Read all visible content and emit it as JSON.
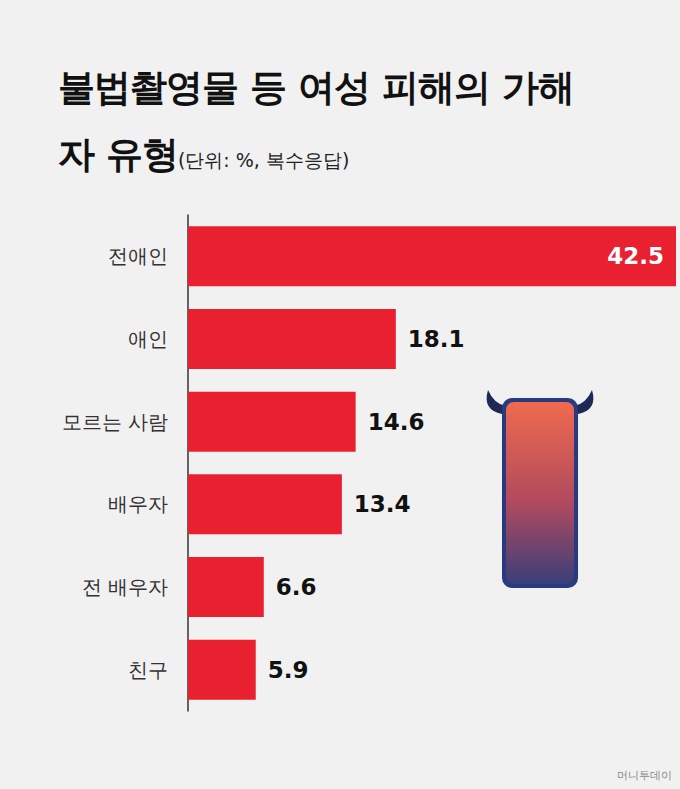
{
  "chart_data": {
    "type": "bar",
    "title": "불법촬영물 등 여성 피해의 가해자 유형",
    "subtitle": "(단위: %, 복수응답)",
    "categories": [
      "전애인",
      "애인",
      "모르는 사람",
      "배우자",
      "전 배우자",
      "친구"
    ],
    "values": [
      42.5,
      18.1,
      14.6,
      13.4,
      6.6,
      5.9
    ],
    "color": "#e8202f",
    "orientation": "horizontal",
    "data_labels": true,
    "tick_labels": "y",
    "xlim": [
      0,
      42.5
    ],
    "grid": false,
    "source": "머니투데이"
  }
}
